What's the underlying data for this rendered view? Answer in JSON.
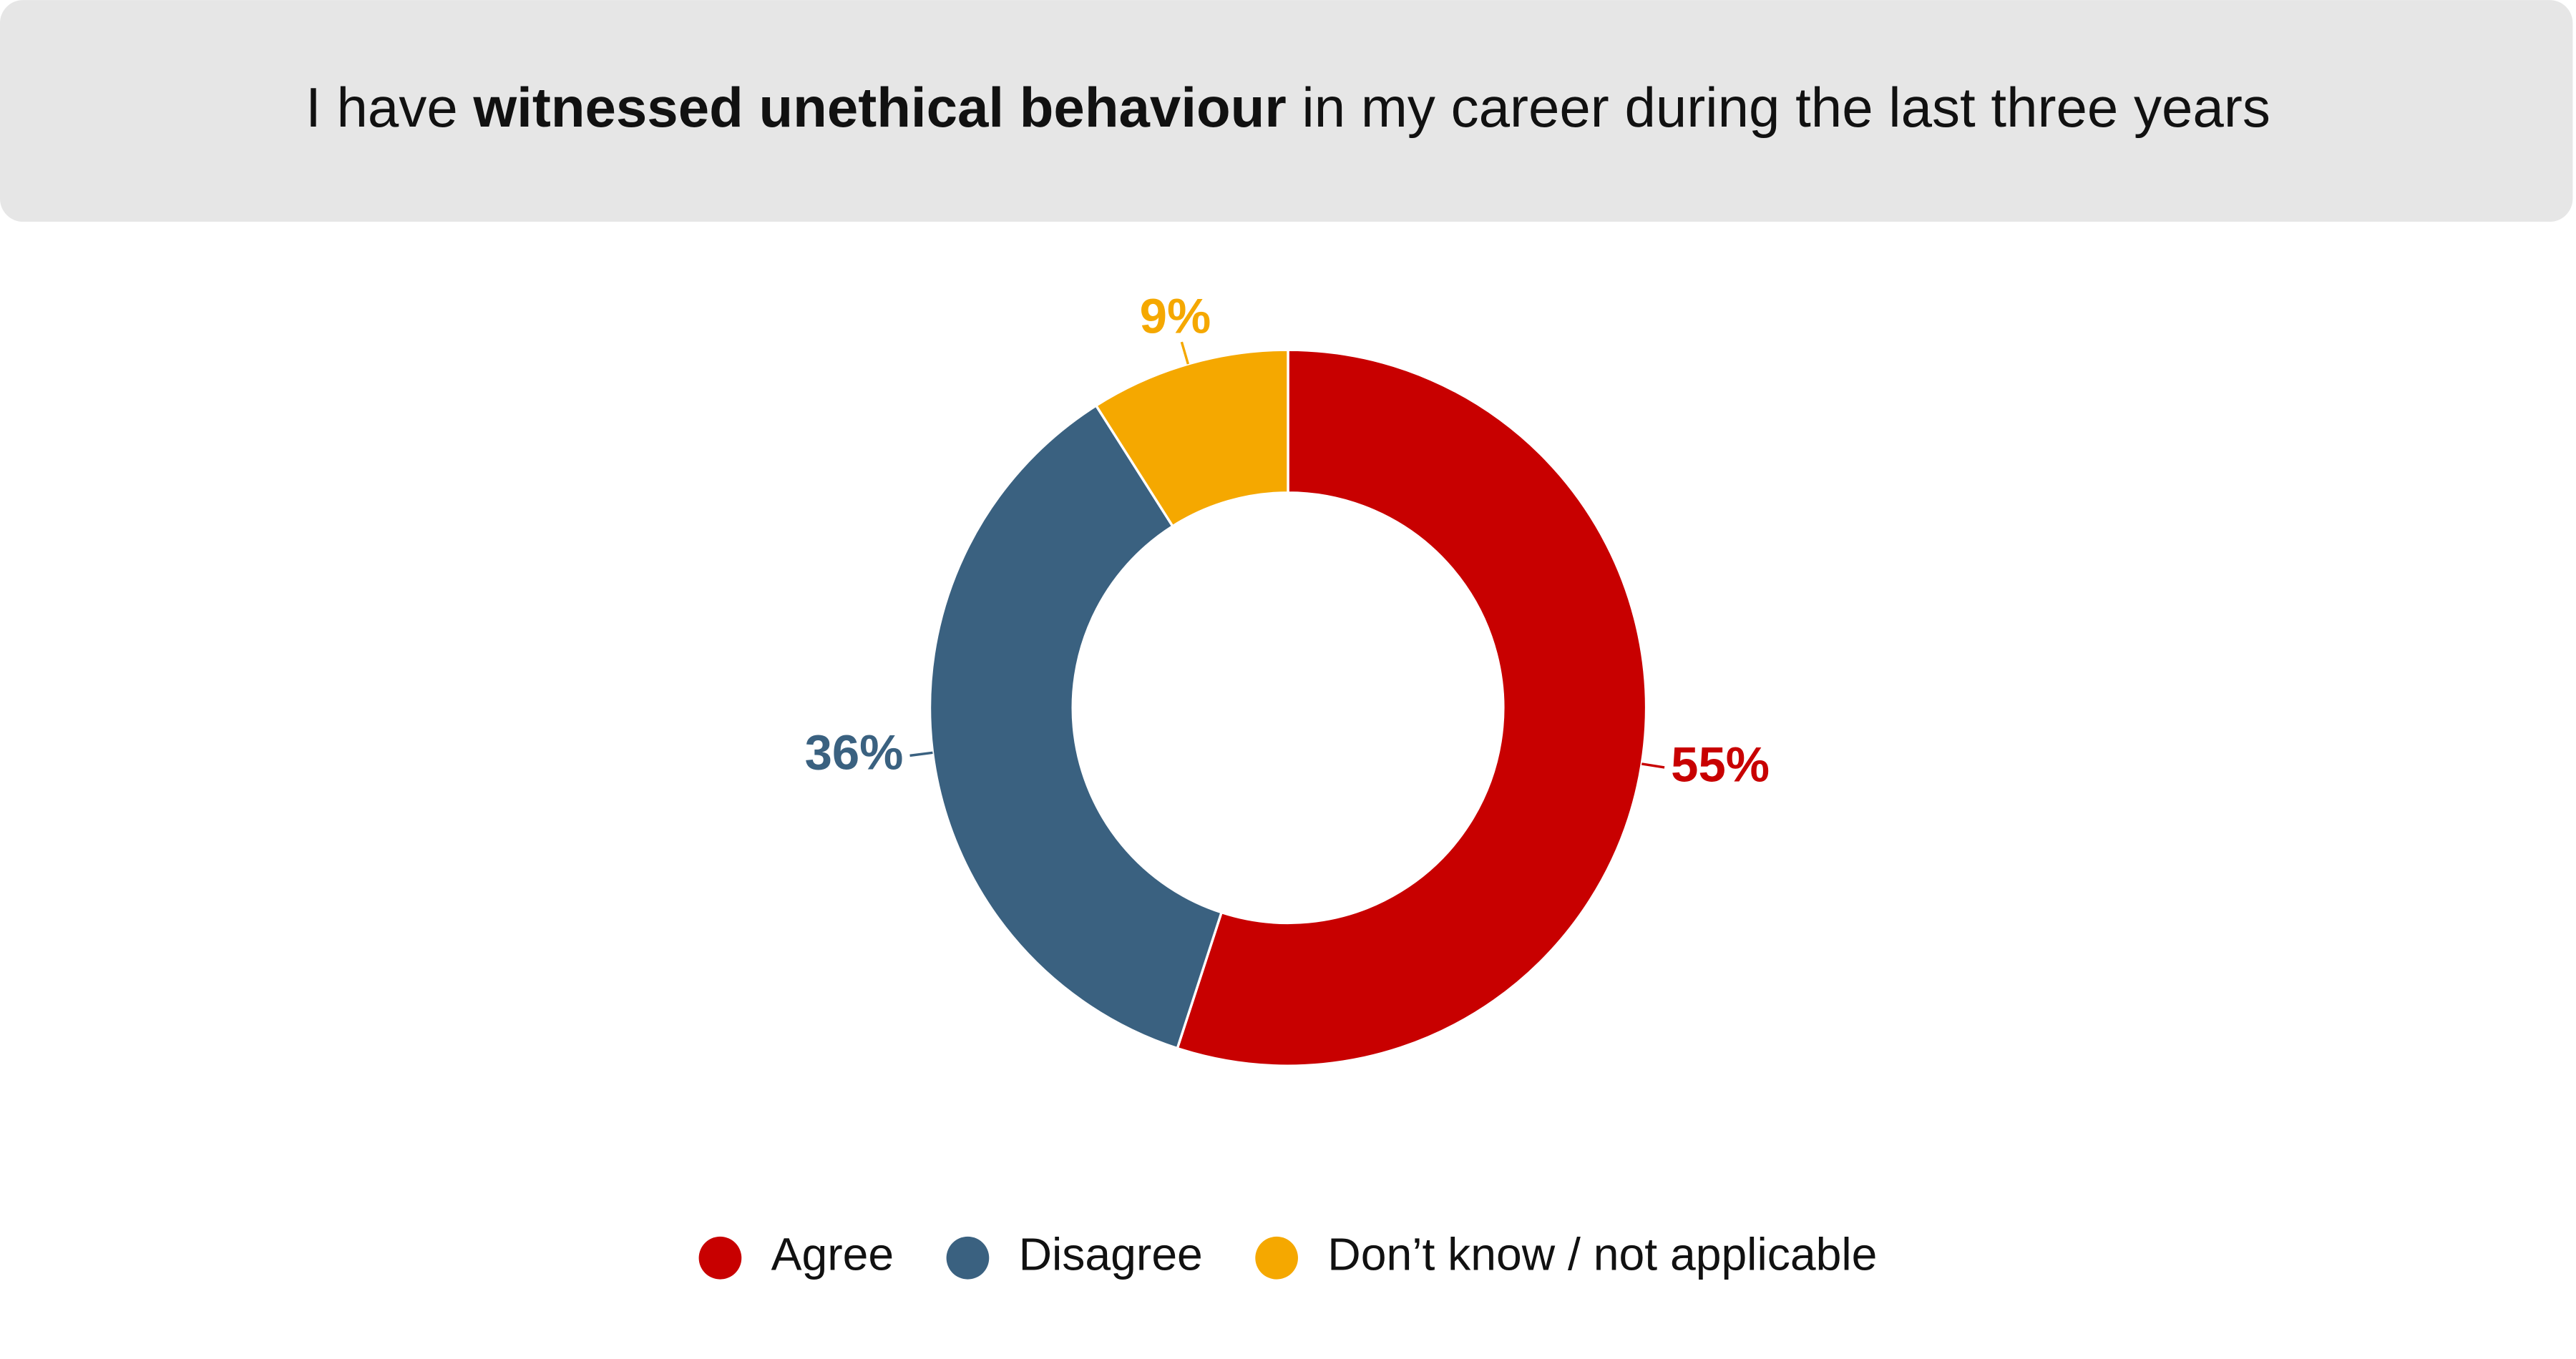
{
  "chart_data": {
    "type": "donut",
    "title_parts": [
      {
        "text": "I have ",
        "bold": false
      },
      {
        "text": "witnessed unethical behaviour",
        "bold": true
      },
      {
        "text": " in my career during the last three years",
        "bold": false
      }
    ],
    "categories": [
      "Agree",
      "Disagree",
      "Don’t know / not applicable"
    ],
    "values": [
      55,
      36,
      9
    ],
    "value_labels": [
      "55%",
      "36%",
      "9%"
    ],
    "colors": [
      "#c80000",
      "#3a6180",
      "#f5a800"
    ],
    "legend": "bottom"
  }
}
